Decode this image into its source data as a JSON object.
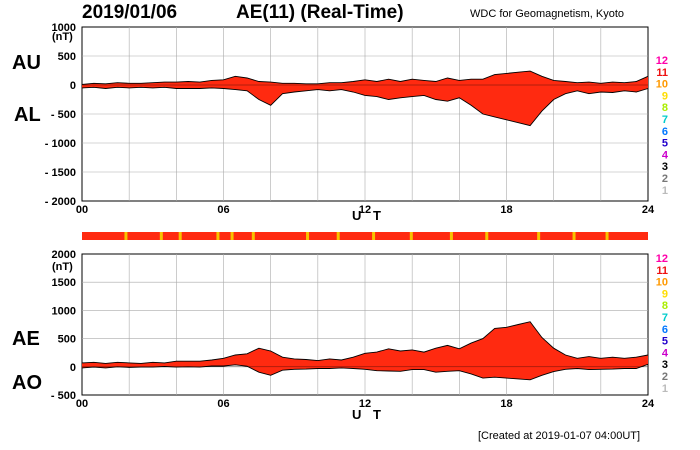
{
  "header": {
    "date": "2019/01/06",
    "title": "AE(11) (Real-Time)",
    "source": "WDC for Geomagnetism, Kyoto"
  },
  "footer": "[Created at 2019-01-07 04:00UT]",
  "colors": {
    "fill_main": "#ff2a10",
    "fill_flag": "#f7c300",
    "fill_light": "#ffb000",
    "grid": "#aaaaaa"
  },
  "legend": [
    {
      "label": "12",
      "color": "#ff00aa"
    },
    {
      "label": "11",
      "color": "#ee1111"
    },
    {
      "label": "10",
      "color": "#ff9900"
    },
    {
      "label": "9",
      "color": "#ffdd00"
    },
    {
      "label": "8",
      "color": "#aaee00"
    },
    {
      "label": "7",
      "color": "#00cccc"
    },
    {
      "label": "6",
      "color": "#0077ff"
    },
    {
      "label": "5",
      "color": "#2200cc"
    },
    {
      "label": "4",
      "color": "#cc00cc"
    },
    {
      "label": "3",
      "color": "#000000"
    },
    {
      "label": "2",
      "color": "#777777"
    },
    {
      "label": "1",
      "color": "#bbbbbb"
    }
  ],
  "chart_data": [
    {
      "type": "area",
      "id": "au_al",
      "label_top": "AU",
      "label_bottom": "AL",
      "unit": "(nT)",
      "xlabel": "U T",
      "xlim": [
        0,
        24
      ],
      "ylim": [
        -2000,
        1000
      ],
      "xticks": [
        "00",
        "06",
        "12",
        "18",
        "24"
      ],
      "yticks": [
        {
          "v": 1000,
          "label": "1000"
        },
        {
          "v": 500,
          "label": "500"
        },
        {
          "v": 0,
          "label": "0"
        },
        {
          "v": -500,
          "label": "- 500"
        },
        {
          "v": -1000,
          "label": "- 1000"
        },
        {
          "v": -1500,
          "label": "- 1500"
        },
        {
          "v": -2000,
          "label": "- 2000"
        }
      ],
      "series": [
        {
          "name": "AU",
          "x": [
            0,
            0.5,
            1,
            1.5,
            2,
            2.5,
            3,
            3.5,
            4,
            4.5,
            5,
            5.5,
            6,
            6.5,
            7,
            7.5,
            8,
            8.5,
            9,
            9.5,
            10,
            10.5,
            11,
            11.5,
            12,
            12.5,
            13,
            13.5,
            14,
            14.5,
            15,
            15.5,
            16,
            16.5,
            17,
            17.5,
            18,
            18.5,
            19,
            19.5,
            20,
            20.5,
            21,
            21.5,
            22,
            22.5,
            23,
            23.5,
            24
          ],
          "values": [
            10,
            30,
            20,
            40,
            30,
            30,
            40,
            50,
            50,
            60,
            50,
            80,
            90,
            150,
            120,
            60,
            50,
            30,
            30,
            20,
            20,
            40,
            40,
            60,
            90,
            60,
            100,
            60,
            100,
            80,
            60,
            120,
            80,
            100,
            100,
            180,
            200,
            220,
            240,
            150,
            80,
            60,
            40,
            50,
            30,
            50,
            40,
            60,
            150
          ]
        },
        {
          "name": "AL",
          "x": [
            0,
            0.5,
            1,
            1.5,
            2,
            2.5,
            3,
            3.5,
            4,
            4.5,
            5,
            5.5,
            6,
            6.5,
            7,
            7.5,
            8,
            8.5,
            9,
            9.5,
            10,
            10.5,
            11,
            11.5,
            12,
            12.5,
            13,
            13.5,
            14,
            14.5,
            15,
            15.5,
            16,
            16.5,
            17,
            17.5,
            18,
            18.5,
            19,
            19.5,
            20,
            20.5,
            21,
            21.5,
            22,
            22.5,
            23,
            23.5,
            24
          ],
          "values": [
            -50,
            -40,
            -60,
            -40,
            -50,
            -40,
            -50,
            -40,
            -60,
            -60,
            -60,
            -50,
            -60,
            -80,
            -100,
            -250,
            -350,
            -150,
            -120,
            -100,
            -80,
            -100,
            -80,
            -120,
            -180,
            -200,
            -250,
            -220,
            -200,
            -180,
            -250,
            -280,
            -220,
            -350,
            -500,
            -550,
            -600,
            -650,
            -700,
            -450,
            -250,
            -150,
            -100,
            -150,
            -120,
            -130,
            -100,
            -120,
            -60
          ]
        }
      ]
    },
    {
      "type": "area",
      "id": "ae_ao",
      "label_top": "AE",
      "label_bottom": "AO",
      "unit": "(nT)",
      "xlabel": "U T",
      "xlim": [
        0,
        24
      ],
      "ylim": [
        -500,
        2000
      ],
      "xticks": [
        "00",
        "06",
        "12",
        "18",
        "24"
      ],
      "yticks": [
        {
          "v": 2000,
          "label": "2000"
        },
        {
          "v": 1500,
          "label": "1500"
        },
        {
          "v": 1000,
          "label": "1000"
        },
        {
          "v": 500,
          "label": "500"
        },
        {
          "v": 0,
          "label": "0"
        },
        {
          "v": -500,
          "label": "- 500"
        }
      ],
      "series": [
        {
          "name": "AE",
          "x": [
            0,
            0.5,
            1,
            1.5,
            2,
            2.5,
            3,
            3.5,
            4,
            4.5,
            5,
            5.5,
            6,
            6.5,
            7,
            7.5,
            8,
            8.5,
            9,
            9.5,
            10,
            10.5,
            11,
            11.5,
            12,
            12.5,
            13,
            13.5,
            14,
            14.5,
            15,
            15.5,
            16,
            16.5,
            17,
            17.5,
            18,
            18.5,
            19,
            19.5,
            20,
            20.5,
            21,
            21.5,
            22,
            22.5,
            23,
            23.5,
            24
          ],
          "values": [
            70,
            80,
            60,
            80,
            70,
            60,
            80,
            70,
            100,
            100,
            100,
            120,
            150,
            210,
            230,
            330,
            280,
            170,
            140,
            130,
            110,
            140,
            120,
            170,
            240,
            260,
            320,
            280,
            300,
            260,
            330,
            380,
            320,
            420,
            500,
            680,
            700,
            750,
            800,
            520,
            330,
            210,
            150,
            180,
            150,
            170,
            150,
            170,
            210
          ]
        },
        {
          "name": "AO",
          "x": [
            0,
            0.5,
            1,
            1.5,
            2,
            2.5,
            3,
            3.5,
            4,
            4.5,
            5,
            5.5,
            6,
            6.5,
            7,
            7.5,
            8,
            8.5,
            9,
            9.5,
            10,
            10.5,
            11,
            11.5,
            12,
            12.5,
            13,
            13.5,
            14,
            14.5,
            15,
            15.5,
            16,
            16.5,
            17,
            17.5,
            18,
            18.5,
            19,
            19.5,
            20,
            20.5,
            21,
            21.5,
            22,
            22.5,
            23,
            23.5,
            24
          ],
          "values": [
            -20,
            -5,
            -20,
            0,
            -10,
            -5,
            -5,
            5,
            -5,
            0,
            -5,
            15,
            15,
            35,
            10,
            -95,
            -150,
            -60,
            -45,
            -40,
            -30,
            -30,
            -20,
            -30,
            -45,
            -70,
            -75,
            -80,
            -50,
            -50,
            -95,
            -80,
            -70,
            -125,
            -200,
            -185,
            -200,
            -215,
            -230,
            -150,
            -85,
            -45,
            -30,
            -50,
            -45,
            -40,
            -30,
            -30,
            45
          ]
        }
      ]
    }
  ]
}
